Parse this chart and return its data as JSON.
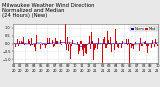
{
  "title_line1": "Milwaukee Weather Wind Direction",
  "title_line2": "Normalized and Median",
  "title_line3": "(24 Hours) (New)",
  "background_color": "#e8e8e8",
  "plot_bg_color": "#ffffff",
  "bar_color": "#dd0000",
  "median_color": "#0000cc",
  "ylim": [
    -1.2,
    1.2
  ],
  "y_ticks": [
    -1.0,
    -0.5,
    0.0,
    0.5,
    1.0
  ],
  "num_points": 300,
  "legend_label1": "Norm",
  "legend_label2": "Med",
  "legend_color1": "#0000bb",
  "legend_color2": "#dd0000",
  "title_fontsize": 3.8,
  "tick_fontsize": 2.5,
  "grid_color": "#aaaaaa",
  "grid_alpha": 0.6
}
